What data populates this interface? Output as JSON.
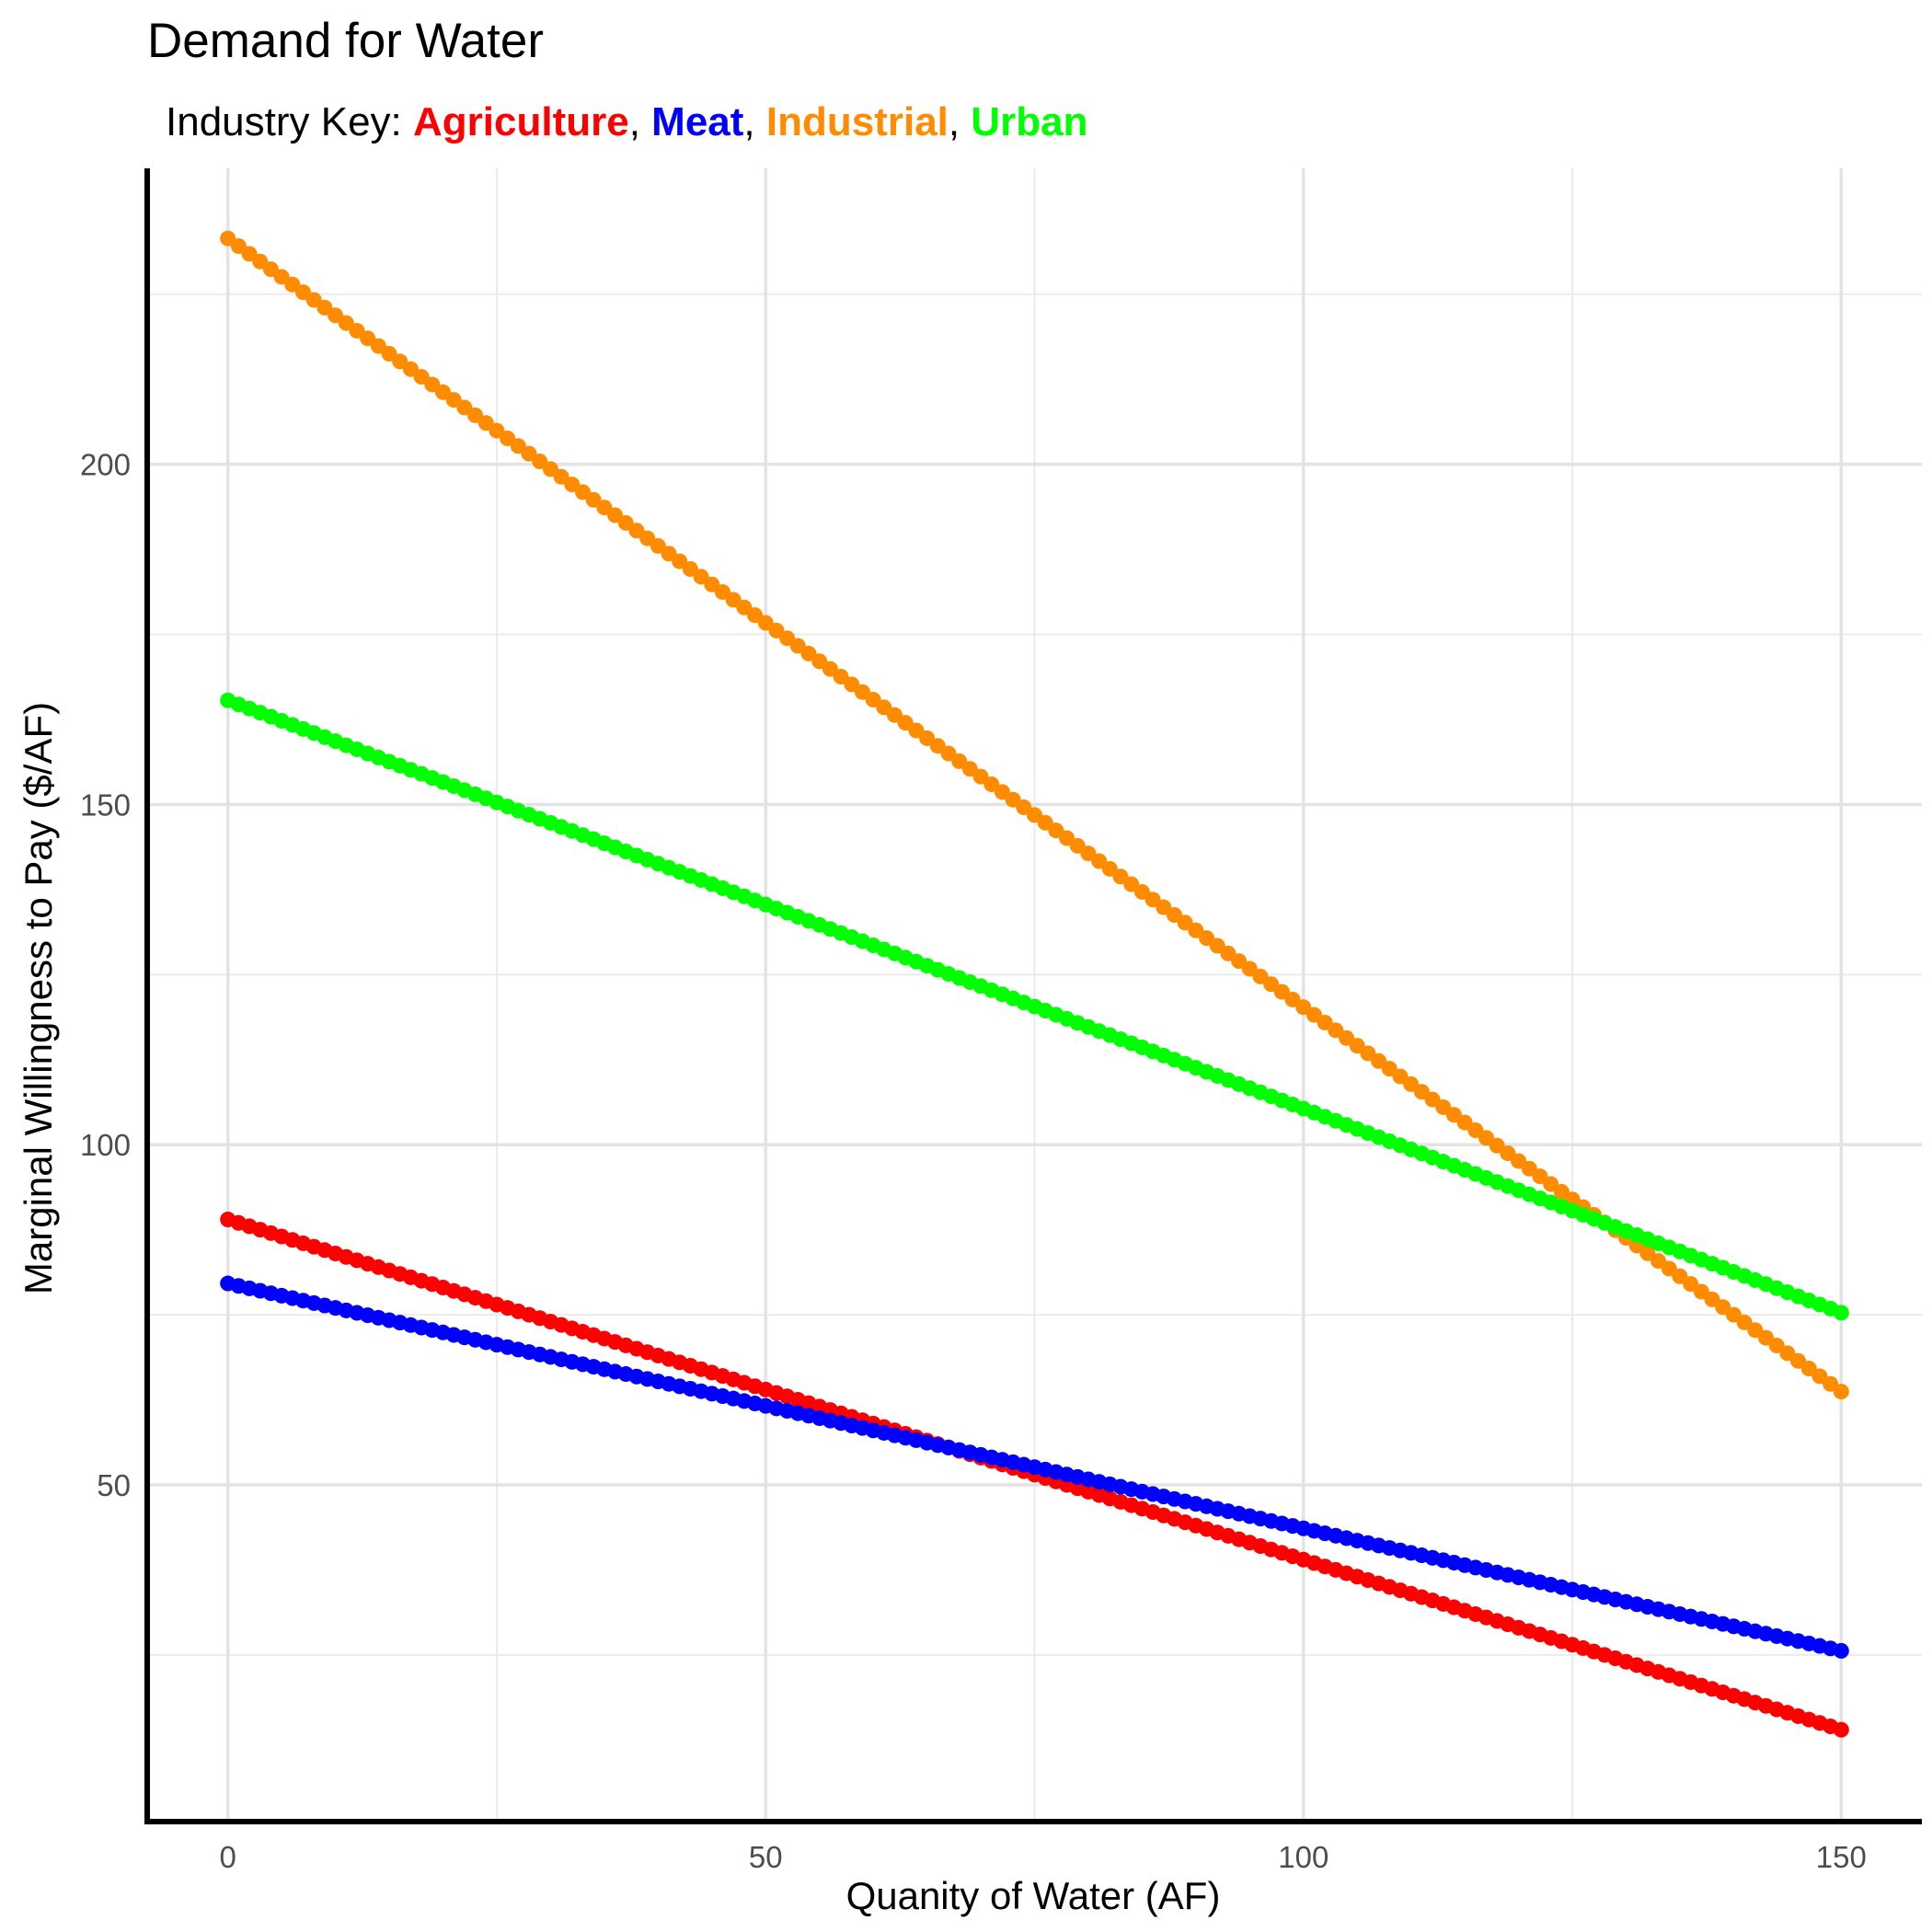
{
  "chart_data": {
    "type": "scatter",
    "title": "Demand for Water",
    "subtitle": {
      "prefix": "Industry Key: ",
      "separator": ", "
    },
    "xlabel": "Quanity of Water (AF)",
    "ylabel": "Marginal Willingness to Pay ($/AF)",
    "xlim": [
      -7.5,
      157.5
    ],
    "ylim": [
      0.5,
      243.5
    ],
    "x_ticks": [
      0,
      50,
      100,
      150
    ],
    "y_ticks": [
      50,
      100,
      150,
      200
    ],
    "x_minor_ticks": [
      25,
      75,
      125
    ],
    "y_minor_ticks": [
      25,
      75,
      125,
      175,
      225
    ],
    "grid": true,
    "legend": "subtitle",
    "x_range": {
      "start": 0,
      "end": 150,
      "step": 1
    },
    "series": [
      {
        "name": "Agriculture",
        "color": "#ff0000",
        "intercept": 89,
        "slope": -0.5
      },
      {
        "name": "Meat",
        "color": "#0000ff",
        "intercept": 79.6,
        "slope": -0.36
      },
      {
        "name": "Industrial",
        "color": "#ff8c00",
        "intercept": 233.2,
        "slope": -1.13
      },
      {
        "name": "Urban",
        "color": "#00ff00",
        "intercept": 165.3,
        "slope": -0.6
      }
    ]
  }
}
